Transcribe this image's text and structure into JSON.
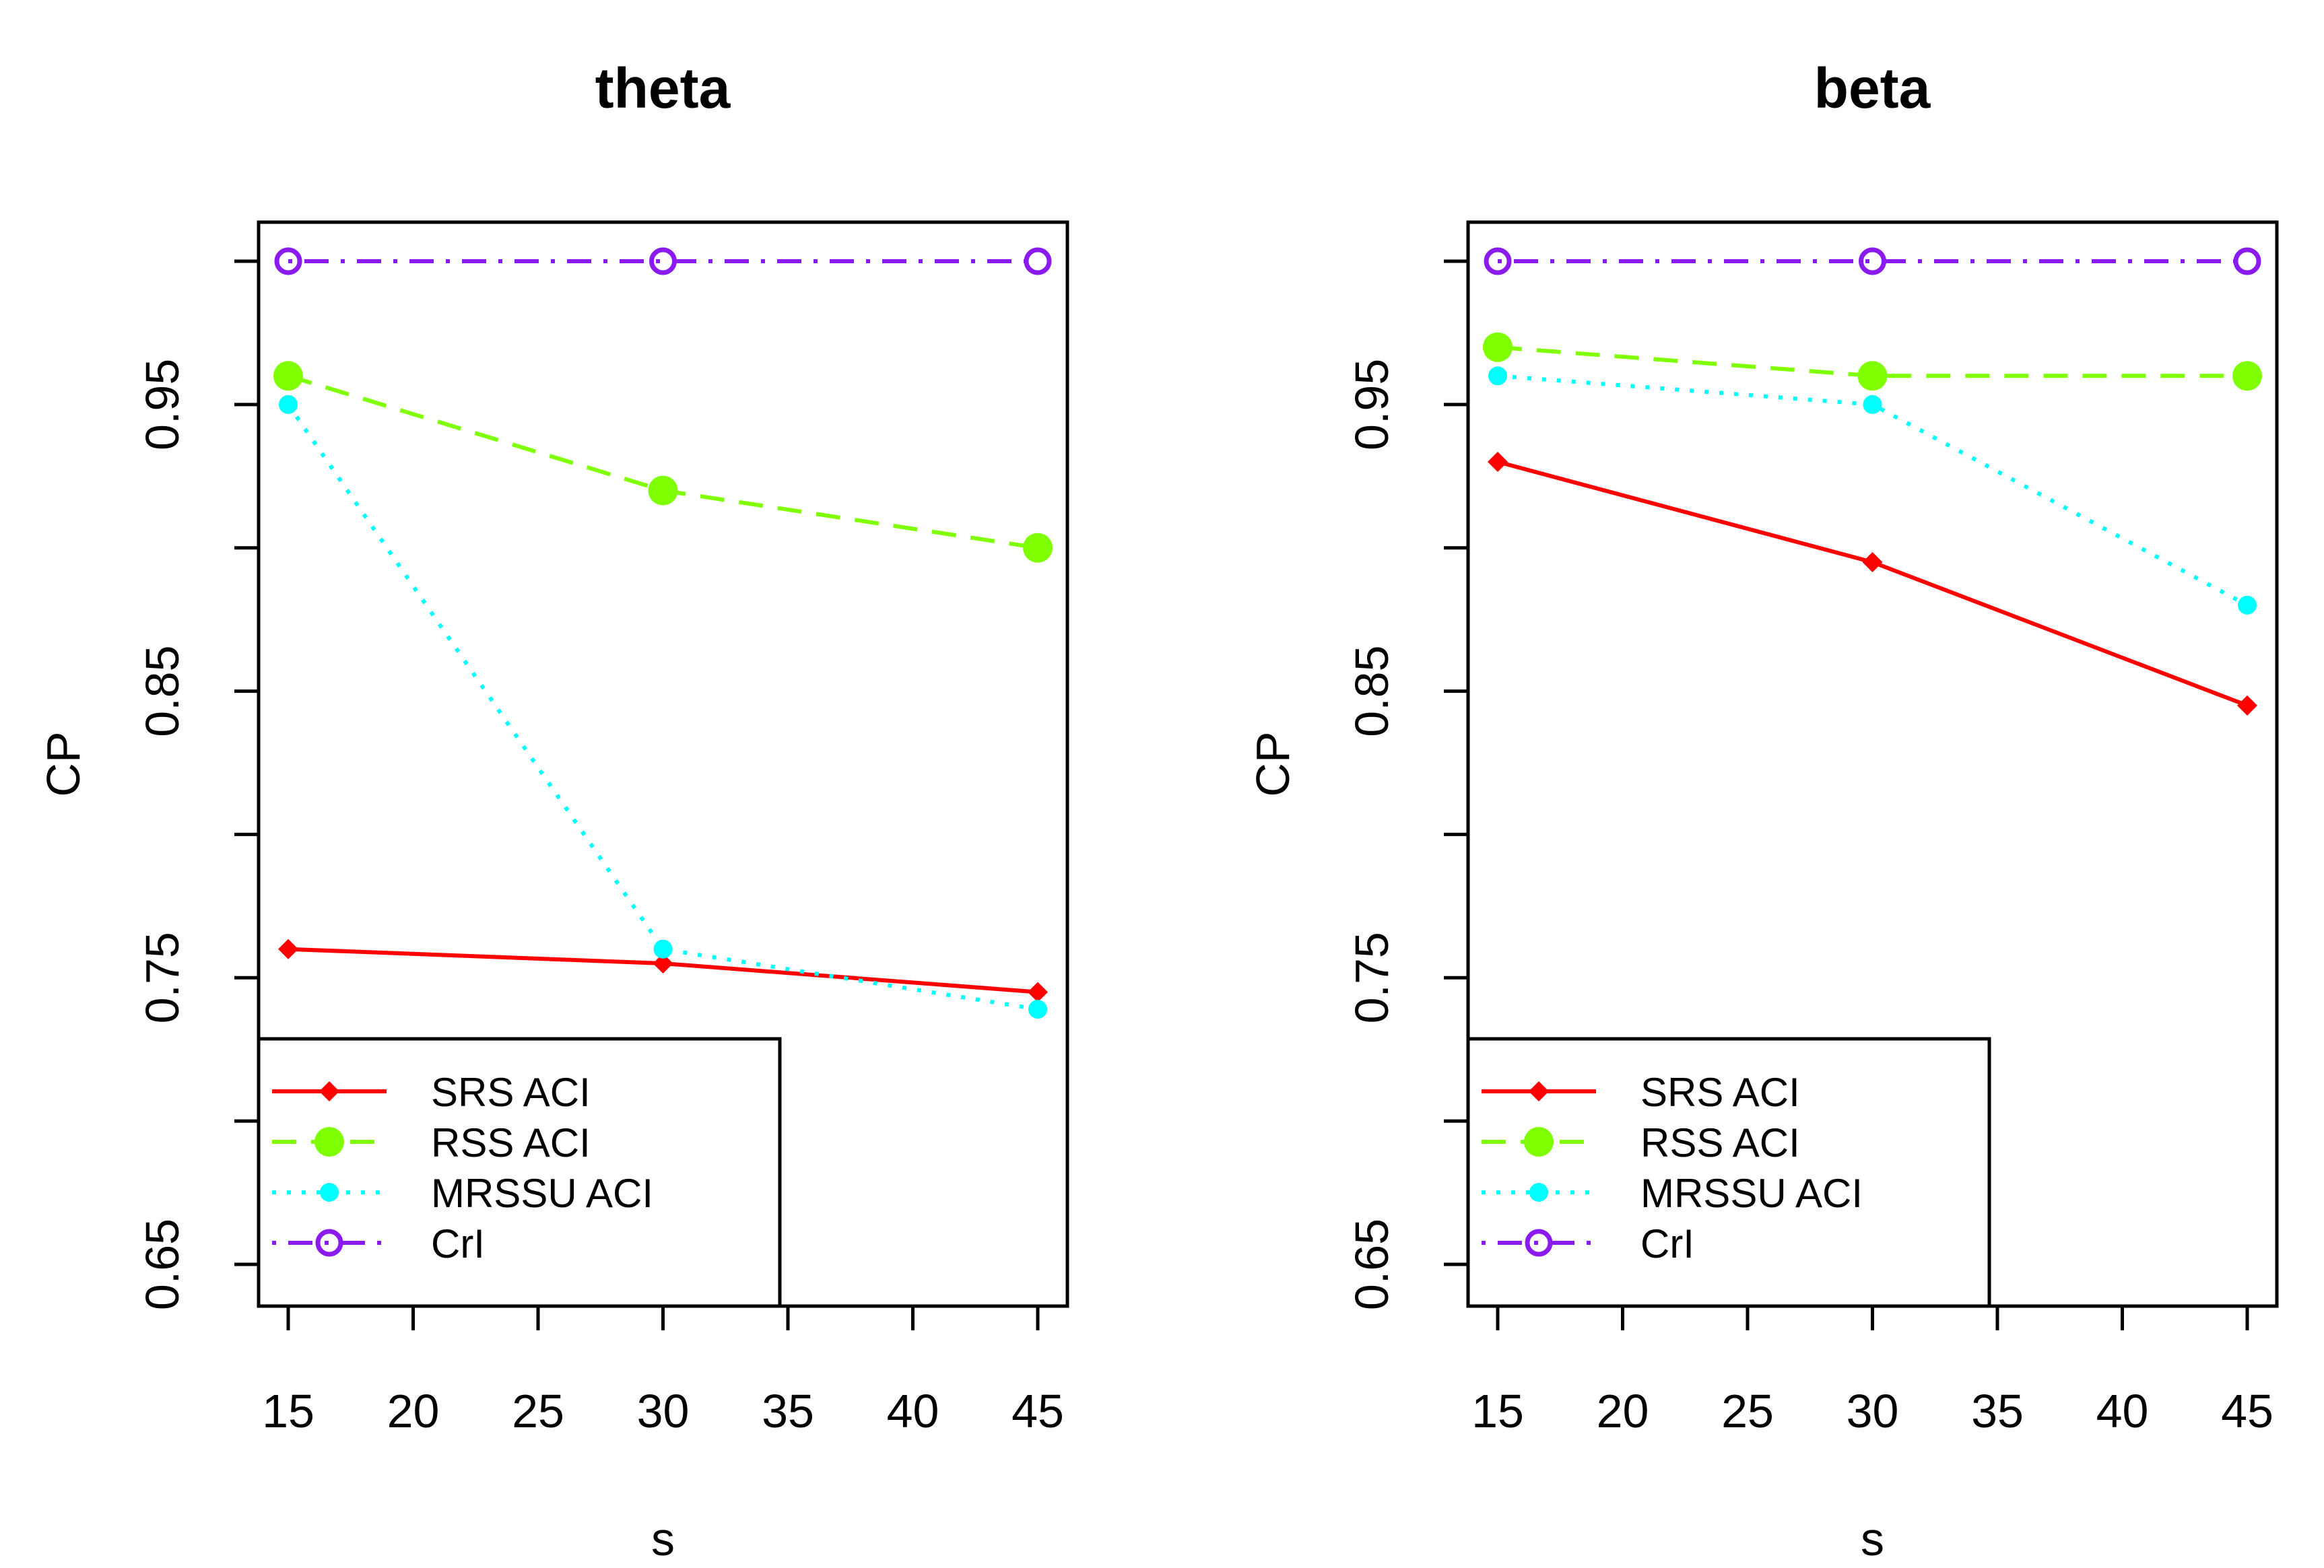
{
  "chart_data": [
    {
      "type": "line",
      "title": "theta",
      "xlabel": "s",
      "ylabel": "CP",
      "x": [
        15,
        30,
        45
      ],
      "xlim": [
        15,
        45
      ],
      "ylim": [
        0.65,
        1.0
      ],
      "xticks": [
        "15",
        "20",
        "25",
        "30",
        "35",
        "40",
        "45"
      ],
      "yticks": [
        "0.65",
        "0.75",
        "0.85",
        "0.95"
      ],
      "ytick_values": [
        0.65,
        0.7,
        0.75,
        0.8,
        0.85,
        0.9,
        0.95,
        1.0
      ],
      "grid": false,
      "legend_position": "bottom-left",
      "series": [
        {
          "name": "SRS ACI",
          "values": [
            0.76,
            0.755,
            0.745
          ],
          "color": "#ff0000",
          "dash": "solid",
          "marker": "diamond"
        },
        {
          "name": "RSS ACI",
          "values": [
            0.96,
            0.92,
            0.9
          ],
          "color": "#7fff00",
          "dash": "dashed",
          "marker": "filled-circle-large"
        },
        {
          "name": "MRSSU ACI",
          "values": [
            0.95,
            0.76,
            0.739
          ],
          "color": "#00ffff",
          "dash": "dotted",
          "marker": "filled-circle-small"
        },
        {
          "name": "CrI",
          "values": [
            1.0,
            1.0,
            1.0
          ],
          "color": "#8b1aee",
          "dash": "dotdash",
          "marker": "open-circle"
        }
      ]
    },
    {
      "type": "line",
      "title": "beta",
      "xlabel": "s",
      "ylabel": "CP",
      "x": [
        15,
        30,
        45
      ],
      "xlim": [
        15,
        45
      ],
      "ylim": [
        0.65,
        1.0
      ],
      "xticks": [
        "15",
        "20",
        "25",
        "30",
        "35",
        "40",
        "45"
      ],
      "yticks": [
        "0.65",
        "0.75",
        "0.85",
        "0.95"
      ],
      "ytick_values": [
        0.65,
        0.7,
        0.75,
        0.8,
        0.85,
        0.9,
        0.95,
        1.0
      ],
      "grid": false,
      "legend_position": "bottom-left",
      "series": [
        {
          "name": "SRS ACI",
          "values": [
            0.93,
            0.895,
            0.845
          ],
          "color": "#ff0000",
          "dash": "solid",
          "marker": "diamond"
        },
        {
          "name": "RSS ACI",
          "values": [
            0.97,
            0.96,
            0.96
          ],
          "color": "#7fff00",
          "dash": "dashed",
          "marker": "filled-circle-large"
        },
        {
          "name": "MRSSU ACI",
          "values": [
            0.96,
            0.95,
            0.88
          ],
          "color": "#00ffff",
          "dash": "dotted",
          "marker": "filled-circle-small"
        },
        {
          "name": "CrI",
          "values": [
            1.0,
            1.0,
            1.0
          ],
          "color": "#8b1aee",
          "dash": "dotdash",
          "marker": "open-circle"
        }
      ]
    }
  ]
}
